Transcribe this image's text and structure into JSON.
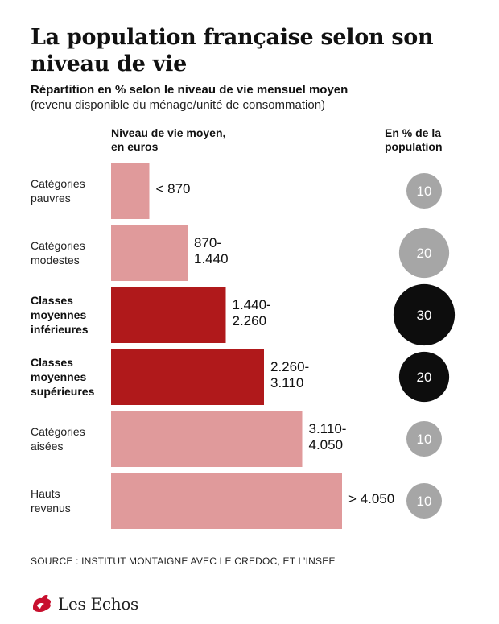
{
  "title": "La population française selon son niveau de vie",
  "subtitle": "Répartition en % selon le niveau de vie mensuel moyen",
  "subtitle2": "(revenu disponible du ménage/unité de consommation)",
  "col_left_header": "Niveau de vie moyen,\nen euros",
  "col_right_header": "En % de la\npopulation",
  "source": "SOURCE : INSTITUT MONTAIGNE AVEC LE CREDOC, ET L’INSEE",
  "logo_text": "Les Echos",
  "colors": {
    "light_bar": "#e09a9b",
    "dark_bar": "#b0191b",
    "grey_circle": "#a6a6a6",
    "black_circle": "#0d0d0d",
    "logo_red": "#c8102e"
  },
  "chart_data": {
    "type": "bar",
    "orientation": "horizontal",
    "title": "La population française selon son niveau de vie",
    "categories": [
      "Catégories pauvres",
      "Catégories modestes",
      "Classes moyennes inférieures",
      "Classes moyennes supérieures",
      "Catégories aisées",
      "Hauts revenus"
    ],
    "range_labels": [
      "< 870",
      "870-\n1.440",
      "1.440-\n2.260",
      "2.260-\n3.110",
      "3.110-\n4.050",
      "> 4.050"
    ],
    "bar_lengths": [
      1,
      2,
      3,
      4,
      5,
      6
    ],
    "highlight": [
      false,
      false,
      true,
      true,
      false,
      false
    ],
    "population_pct": [
      10,
      20,
      30,
      20,
      10,
      10
    ]
  }
}
